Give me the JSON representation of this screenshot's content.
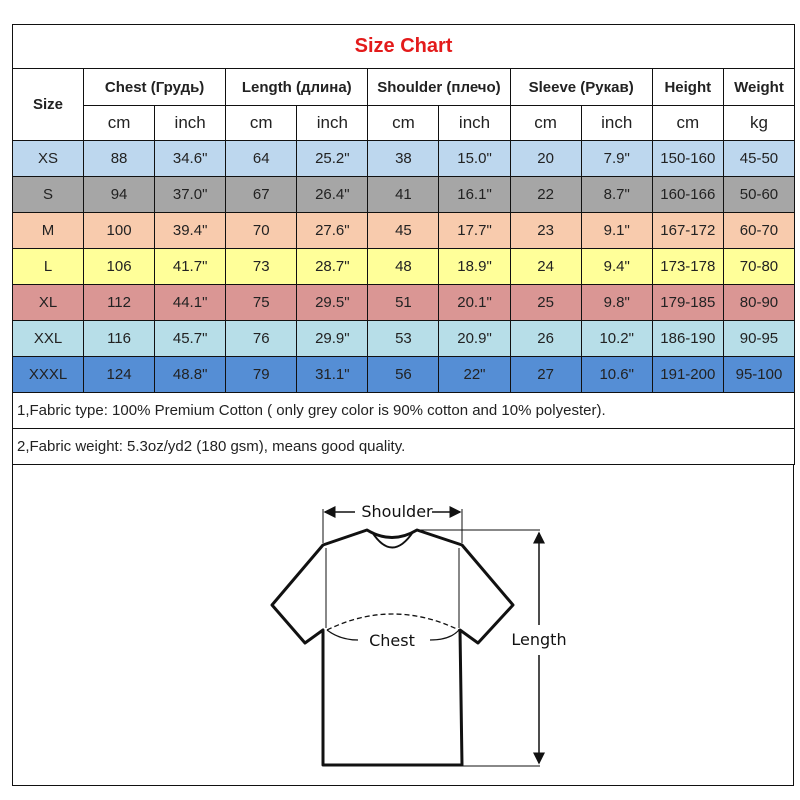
{
  "title": "Size Chart",
  "headers": {
    "size": "Size",
    "chest": "Chest  (Грудь)",
    "length": "Length (длина)",
    "shoulder": "Shoulder (плечо)",
    "sleeve": "Sleeve (Рукав)",
    "height": "Height",
    "weight": "Weight"
  },
  "units": [
    "cm",
    "inch",
    "cm",
    "inch",
    "cm",
    "inch",
    "cm",
    "inch",
    "cm",
    "kg"
  ],
  "rows": [
    {
      "size": "XS",
      "color": "#bdd7ee",
      "values": [
        "88",
        "34.6\"",
        "64",
        "25.2\"",
        "38",
        "15.0\"",
        "20",
        "7.9\"",
        "150-160",
        "45-50"
      ]
    },
    {
      "size": "S",
      "color": "#a6a6a6",
      "values": [
        "94",
        "37.0\"",
        "67",
        "26.4\"",
        "41",
        "16.1\"",
        "22",
        "8.7\"",
        "160-166",
        "50-60"
      ]
    },
    {
      "size": "M",
      "color": "#f8cbad",
      "values": [
        "100",
        "39.4\"",
        "70",
        "27.6\"",
        "45",
        "17.7\"",
        "23",
        "9.1\"",
        "167-172",
        "60-70"
      ]
    },
    {
      "size": "L",
      "color": "#ffff99",
      "values": [
        "106",
        "41.7\"",
        "73",
        "28.7\"",
        "48",
        "18.9\"",
        "24",
        "9.4\"",
        "173-178",
        "70-80"
      ]
    },
    {
      "size": "XL",
      "color": "#da9694",
      "values": [
        "112",
        "44.1\"",
        "75",
        "29.5\"",
        "51",
        "20.1\"",
        "25",
        "9.8\"",
        "179-185",
        "80-90"
      ]
    },
    {
      "size": "XXL",
      "color": "#b7dee8",
      "values": [
        "116",
        "45.7\"",
        "76",
        "29.9\"",
        "53",
        "20.9\"",
        "26",
        "10.2\"",
        "186-190",
        "90-95"
      ]
    },
    {
      "size": "XXXL",
      "color": "#558ed5",
      "values": [
        "124",
        "48.8\"",
        "79",
        "31.1\"",
        "56",
        "22\"",
        "27",
        "10.6\"",
        "191-200",
        "95-100"
      ]
    }
  ],
  "notes": [
    "1,Fabric type: 100% Premium Cotton ( only grey color is 90% cotton and 10% polyester).",
    "2,Fabric weight: 5.3oz/yd2 (180 gsm), means good quality."
  ],
  "diagram": {
    "shoulder": "Shoulder",
    "chest": "Chest",
    "length": "Length"
  }
}
